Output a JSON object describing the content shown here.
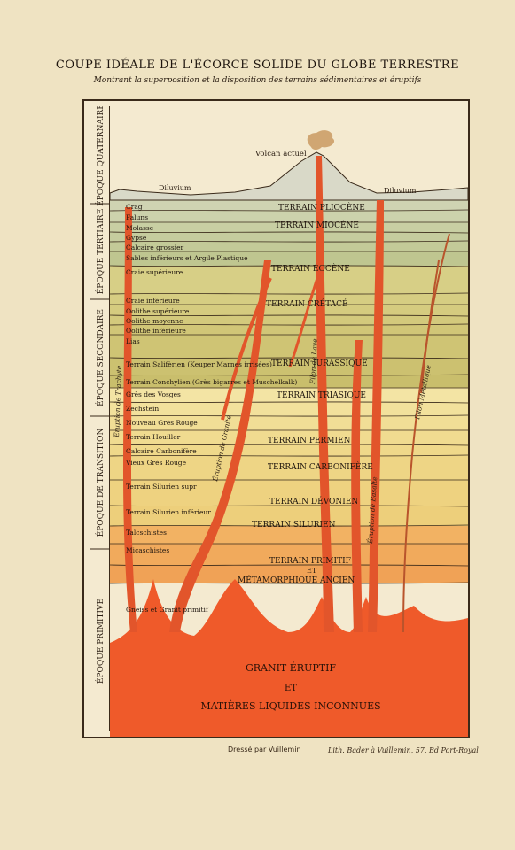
{
  "header": {
    "title": "COUPE IDÉALE DE L'ÉCORCE SOLIDE DU GLOBE TERRESTRE",
    "subtitle": "Montrant la superposition et la disposition des terrains sédimentaires et éruptifs"
  },
  "epochs": [
    {
      "label": "ÉPOQUE QUATERNAIRE"
    },
    {
      "label": "ÉPOQUE TERTIAIRE"
    },
    {
      "label": "ÉPOQUE SECONDAIRE"
    },
    {
      "label": "ÉPOQUE DE TRANSITION"
    },
    {
      "label": "ÉPOQUE PRIMITIVE"
    }
  ],
  "surface": {
    "volcano": "Volcan actuel",
    "diluvium_left": "Diluvium",
    "diluvium_right": "Diluvium"
  },
  "layers": [
    {
      "label": "Crag",
      "color": "#cfd3b2"
    },
    {
      "label": "Faluns",
      "color": "#ccd2ac"
    },
    {
      "label": "Molasse",
      "color": "#c8cfa3"
    },
    {
      "label": "Gypse",
      "color": "#c5cc9e"
    },
    {
      "label": "Calcaire grossier",
      "color": "#c3ca98"
    },
    {
      "label": "Sables inférieurs et Argile Plastique",
      "color": "#bfc690"
    },
    {
      "label": "Craie supérieure",
      "color": "#d7cf86"
    },
    {
      "label": "Craie inférieure",
      "color": "#d6cd82"
    },
    {
      "label": "Oolithe supérieure",
      "color": "#d5cb7f"
    },
    {
      "label": "Oolithe moyenne",
      "color": "#d3c97c"
    },
    {
      "label": "Oolithe inférieure",
      "color": "#d1c677"
    },
    {
      "label": "Lias",
      "color": "#cfc474"
    },
    {
      "label": "Terrain Salifèrien (Keuper Marnes irrisées)",
      "color": "#ccc170"
    },
    {
      "label": "Terrain Conchylien (Grès bigarres et Muschelkalk)",
      "color": "#c9be6c"
    },
    {
      "label": "Grès des Vosges",
      "color": "#f3e4a4"
    },
    {
      "label": "Zechstein",
      "color": "#f2e19c"
    },
    {
      "label": "Nouveau Grès Rouge",
      "color": "#f1de96"
    },
    {
      "label": "Terrain Houiller",
      "color": "#f0db90"
    },
    {
      "label": "Calcaire Carbonifère",
      "color": "#efd88a"
    },
    {
      "label": "Vieux Grès Rouge",
      "color": "#eed585"
    },
    {
      "label": "Terrain Silurien supr",
      "color": "#eed280"
    },
    {
      "label": "Terrain Silurien inférieur",
      "color": "#edcf7b"
    },
    {
      "label": "Talcschistes",
      "color": "#f2b263"
    },
    {
      "label": "Micaschistes",
      "color": "#f1aa5c"
    },
    {
      "label": "Gneiss et Granit primitif",
      "color": "#f0a256"
    }
  ],
  "terrains": [
    {
      "label": "TERRAIN PLIOCÈNE"
    },
    {
      "label": "TERRAIN MIOCÈNE"
    },
    {
      "label": "TERRAIN ÉOCÈNE"
    },
    {
      "label": "TERRAIN CRÉTACÉ"
    },
    {
      "label": "TERRAIN JURASSIQUE"
    },
    {
      "label": "TERRAIN TRIASIQUE"
    },
    {
      "label": "TERRAIN PERMIEN"
    },
    {
      "label": "TERRAIN CARBONIFÈRE"
    },
    {
      "label": "TERRAIN DÉVONIEN"
    },
    {
      "label": "TERRAIN SILURIEN"
    },
    {
      "label": "TERRAIN PRIMITIF"
    },
    {
      "label": "ET"
    },
    {
      "label": "MÉTAMORPHIQUE ANCIEN"
    }
  ],
  "dikes": [
    {
      "label": "Éruption de Trachyte"
    },
    {
      "label": "Éruption de Granite"
    },
    {
      "label": "Filon de Lave"
    },
    {
      "label": "Éruption de Basalte"
    },
    {
      "label": "Filon Métallique"
    }
  ],
  "base": {
    "line1": "GRANIT ÉRUPTIF",
    "line2": "ET",
    "line3": "MATIÈRES LIQUIDES INCONNUES"
  },
  "colors": {
    "magma": "#ef5a2a",
    "dike": "#e2552b",
    "primitive": "#f0a256",
    "tertiary": "#c6cc9f",
    "secondary": "#d3c97c",
    "transition": "#efd88a"
  },
  "credits": {
    "left": "Dressé par Vuillemin",
    "right": "Lith. Bader à Vuillemin, 57, Bd Port-Royal"
  }
}
